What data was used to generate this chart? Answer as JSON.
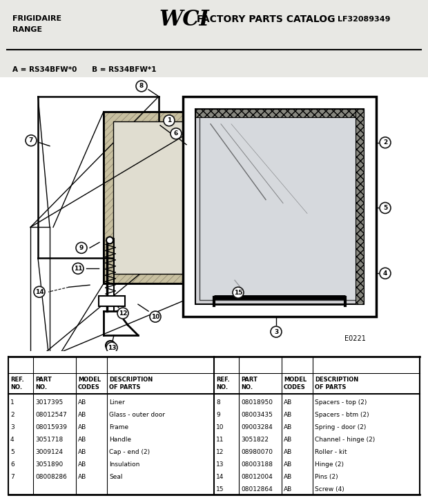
{
  "page_color": "#e8e8e4",
  "header_color": "#e8e8e4",
  "diagram_color": "#e8e8e4",
  "table_color": "#f0f0ec",
  "text_color": "#1a1a1a",
  "title_left_line1": "FRIGIDAIRE",
  "title_left_line2": "RANGE",
  "title_center_logo": "WCI",
  "title_center_text": "FACTORY PARTS CATALOG",
  "title_right": "LF32089349",
  "model_line": "A = RS34BFW*0      B = RS34BFW*1",
  "diagram_id": "E0221",
  "table_data_left": [
    [
      "1",
      "3017395",
      "AB",
      "Liner"
    ],
    [
      "2",
      "08012547",
      "AB",
      "Glass - outer door"
    ],
    [
      "3",
      "08015939",
      "AB",
      "Frame"
    ],
    [
      "4",
      "3051718",
      "AB",
      "Handle"
    ],
    [
      "5",
      "3009124",
      "AB",
      "Cap - end (2)"
    ],
    [
      "6",
      "3051890",
      "AB",
      "Insulation"
    ],
    [
      "7",
      "08008286",
      "AB",
      "Seal"
    ]
  ],
  "table_data_right": [
    [
      "8",
      "08018950",
      "AB",
      "Spacers - top (2)"
    ],
    [
      "9",
      "08003435",
      "AB",
      "Spacers - btm (2)"
    ],
    [
      "10",
      "09003284",
      "AB",
      "Spring - door (2)"
    ],
    [
      "11",
      "3051822",
      "AB",
      "Channel - hinge (2)"
    ],
    [
      "12",
      "08980070",
      "AB",
      "Roller - kit"
    ],
    [
      "13",
      "08003188",
      "AB",
      "Hinge (2)"
    ],
    [
      "14",
      "08012004",
      "AB",
      "Pins (2)"
    ],
    [
      "15",
      "08012864",
      "AB",
      "Screw (4)"
    ]
  ]
}
